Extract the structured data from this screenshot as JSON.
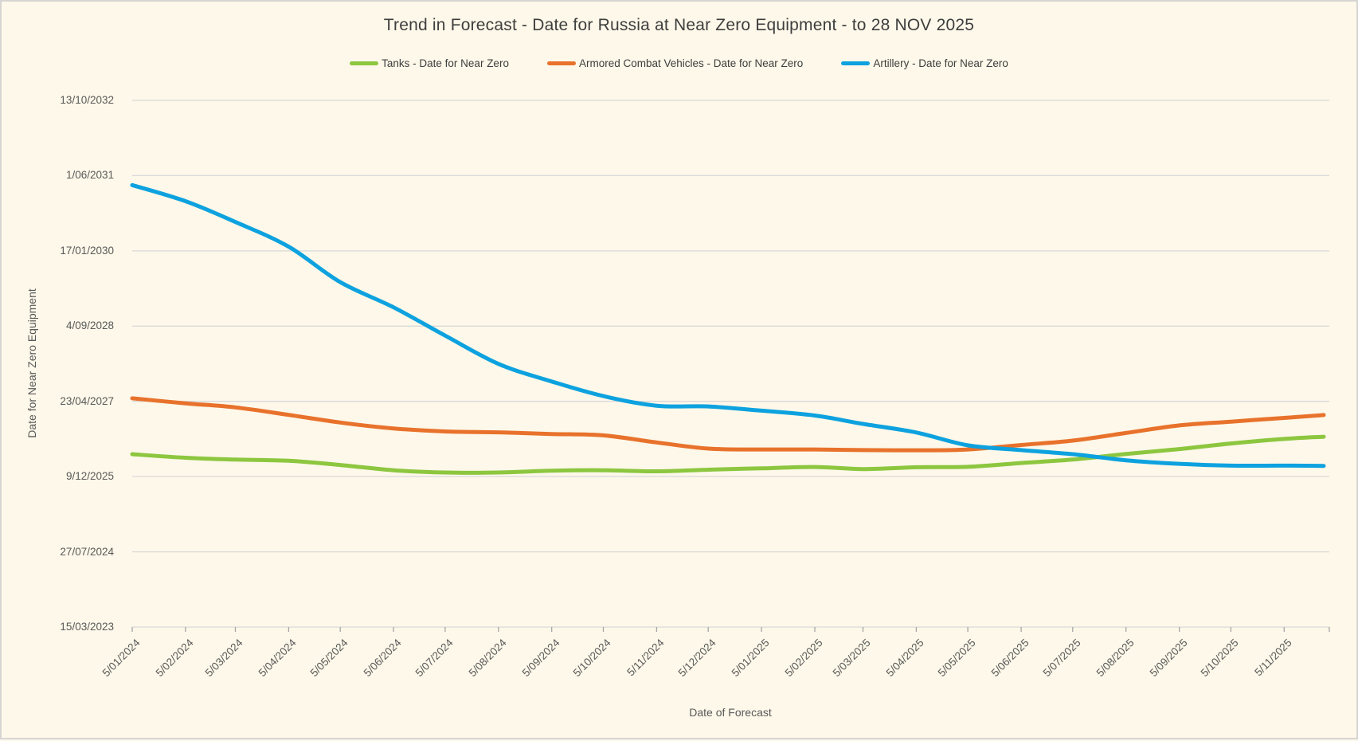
{
  "chart_data": {
    "type": "line",
    "title": "Trend in Forecast - Date for Russia at Near Zero Equipment - to 28 NOV 2025",
    "xlabel": "Date of Forecast",
    "ylabel": "Date for Near Zero Equipment",
    "legend_position": "top",
    "grid": "horizontal",
    "y_axis_range": {
      "min": "15/03/2023",
      "max": "13/10/2032",
      "tick_interval_days": 500
    },
    "x_axis_range": {
      "min": "5/01/2024",
      "max": "28/11/2025"
    },
    "y_tick_labels": [
      "13/10/2032",
      "1/06/2031",
      "17/01/2030",
      "4/09/2028",
      "23/04/2027",
      "9/12/2025",
      "27/07/2024",
      "15/03/2023"
    ],
    "x_tick_labels": [
      "5/01/2024",
      "5/02/2024",
      "5/03/2024",
      "5/04/2024",
      "5/05/2024",
      "5/06/2024",
      "5/07/2024",
      "5/08/2024",
      "5/09/2024",
      "5/10/2024",
      "5/11/2024",
      "5/12/2024",
      "5/01/2025",
      "5/02/2025",
      "5/03/2025",
      "5/04/2025",
      "5/05/2025",
      "5/06/2025",
      "5/07/2025",
      "5/08/2025",
      "5/09/2025",
      "5/10/2025",
      "5/11/2025"
    ],
    "categories": [
      "5/01/2024",
      "5/02/2024",
      "5/03/2024",
      "5/04/2024",
      "5/05/2024",
      "5/06/2024",
      "5/07/2024",
      "5/08/2024",
      "5/09/2024",
      "5/10/2024",
      "5/11/2024",
      "5/12/2024",
      "5/01/2025",
      "5/02/2025",
      "5/03/2025",
      "5/04/2025",
      "5/05/2025",
      "5/06/2025",
      "5/07/2025",
      "5/08/2025",
      "5/09/2025",
      "5/10/2025",
      "5/11/2025",
      "28/11/2025"
    ],
    "series": [
      {
        "name": "Tanks - Date for Near Zero",
        "color": "#8DC63F",
        "values": [
          "7/05/2026",
          "13/04/2026",
          "1/04/2026",
          "24/03/2026",
          "24/02/2026",
          "20/01/2026",
          "5/01/2026",
          "5/01/2026",
          "17/01/2026",
          "20/01/2026",
          "13/01/2026",
          "24/01/2026",
          "2/02/2026",
          "11/02/2026",
          "28/01/2026",
          "9/02/2026",
          "12/02/2026",
          "9/03/2026",
          "1/04/2026",
          "8/05/2026",
          "10/06/2026",
          "17/07/2026",
          "16/08/2026",
          "31/08/2026"
        ]
      },
      {
        "name": "Armored Combat Vehicles - Date for Near Zero",
        "color": "#E8722C",
        "values": [
          "13/05/2027",
          "10/04/2027",
          "14/03/2027",
          "23/01/2027",
          "3/12/2026",
          "25/10/2026",
          "5/10/2026",
          "29/09/2026",
          "18/09/2026",
          "9/09/2026",
          "24/07/2026",
          "13/06/2026",
          "7/06/2026",
          "7/06/2026",
          "3/06/2026",
          "2/06/2026",
          "7/06/2026",
          "7/07/2026",
          "5/08/2026",
          "25/09/2026",
          "14/11/2026",
          "9/12/2026",
          "3/01/2027",
          "22/01/2027"
        ]
      },
      {
        "name": "Artillery - Date for Near Zero",
        "color": "#0DA2DF",
        "values": [
          "30/03/2031",
          "13/12/2030",
          "28/07/2030",
          "14/02/2030",
          "23/06/2029",
          "7/01/2029",
          "3/07/2028",
          "28/12/2027",
          "2/09/2027",
          "28/05/2027",
          "25/03/2027",
          "20/03/2027",
          "20/02/2027",
          "19/01/2027",
          "24/11/2026",
          "28/09/2026",
          "5/07/2026",
          "3/06/2026",
          "7/05/2026",
          "27/03/2026",
          "4/03/2026",
          "20/02/2026",
          "20/02/2026",
          "18/02/2026"
        ]
      }
    ],
    "colors": {
      "background": "#FDF8E9",
      "border": "#D7D4D4",
      "gridline": "#D9D9D9",
      "tick_mark": "#A6A6A6",
      "title_text": "#3E3E3E",
      "axis_text": "#595959"
    }
  }
}
